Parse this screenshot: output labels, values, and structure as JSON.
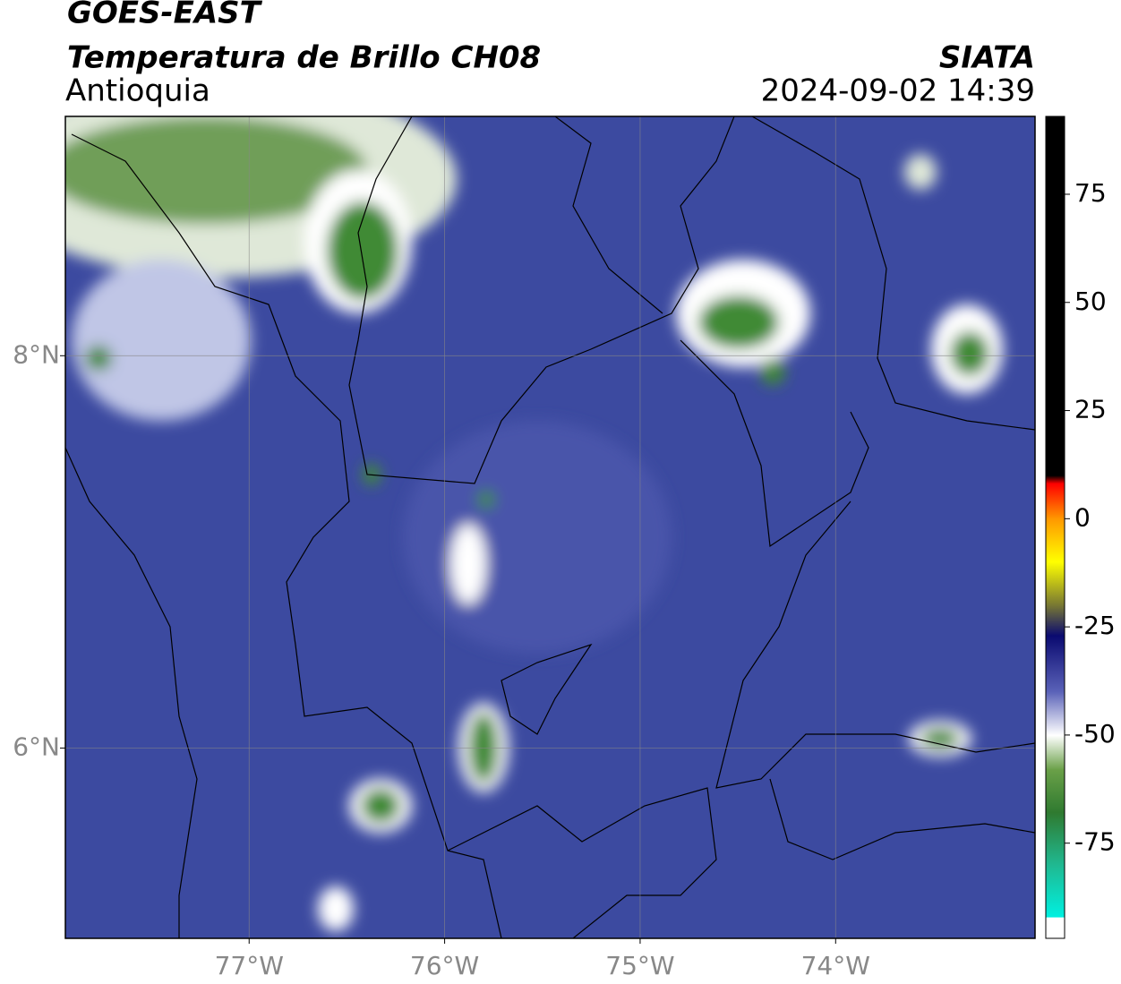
{
  "header": {
    "title": "GOES-EAST",
    "subtitle": "Temperatura de Brillo CH08",
    "region": "Antioquia",
    "source": "SIATA",
    "timestamp": "2024-09-02 14:39"
  },
  "map": {
    "xlim": [
      -77.94,
      -72.98
    ],
    "ylim": [
      5.03,
      9.22
    ],
    "xticks": [
      {
        "value": -77,
        "label": "77°W"
      },
      {
        "value": -76,
        "label": "76°W"
      },
      {
        "value": -75,
        "label": "75°W"
      },
      {
        "value": -74,
        "label": "74°W"
      }
    ],
    "yticks": [
      {
        "value": 6,
        "label": "6°N"
      },
      {
        "value": 8,
        "label": "8°N"
      }
    ],
    "grid": true
  },
  "colorbar": {
    "clim": [
      -97,
      93
    ],
    "ticks": [
      75,
      50,
      25,
      0,
      -25,
      -50,
      -75
    ]
  }
}
